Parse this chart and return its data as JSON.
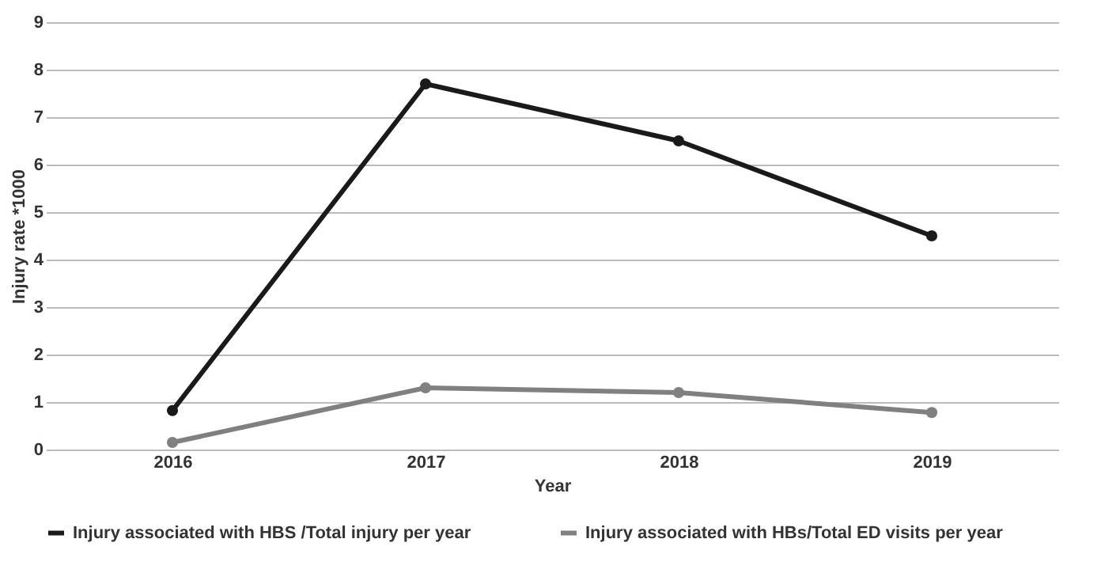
{
  "chart_data": {
    "type": "line",
    "xlabel": "Year",
    "ylabel": "Injury rate *1000",
    "categories": [
      "2016",
      "2017",
      "2018",
      "2019"
    ],
    "series": [
      {
        "name": "Injury associated with HBS /Total injury per year",
        "color": "#1a1a1a",
        "values": [
          0.82,
          7.7,
          6.5,
          4.5
        ]
      },
      {
        "name": "Injury associated with HBs/Total ED visits per year",
        "color": "#808080",
        "values": [
          0.15,
          1.3,
          1.2,
          0.78
        ]
      }
    ],
    "ylim": [
      0,
      9
    ],
    "yticks": [
      0,
      1,
      2,
      3,
      4,
      5,
      6,
      7,
      8,
      9
    ],
    "grid": "y",
    "legend": "bottom",
    "marker": "circle",
    "line_style": "solid"
  }
}
